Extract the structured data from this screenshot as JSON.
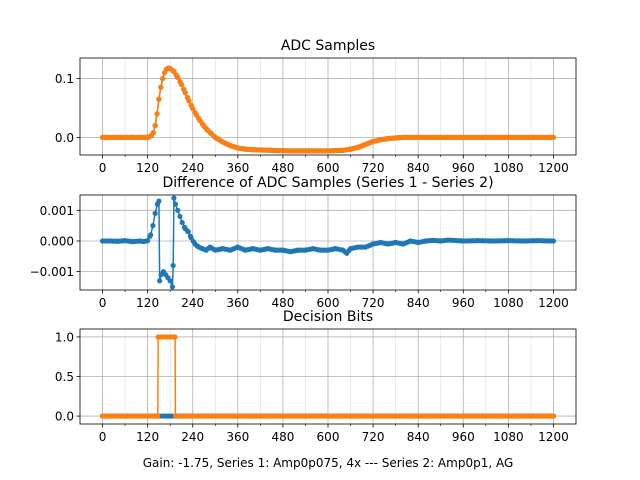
{
  "chart_data": [
    {
      "type": "line",
      "title": "ADC Samples",
      "xlabel": "",
      "ylabel": "",
      "xlim": [
        -60,
        1260
      ],
      "ylim": [
        -0.03,
        0.135
      ],
      "xticks": [
        0,
        120,
        240,
        360,
        480,
        600,
        720,
        840,
        960,
        1080,
        1200
      ],
      "xtick_labels": [
        "0",
        "120",
        "240",
        "360",
        "480",
        "600",
        "720",
        "840",
        "960",
        "1080",
        "1200"
      ],
      "yticks": [
        0.0,
        0.1
      ],
      "ytick_labels": [
        "0.0",
        "0.1"
      ],
      "grid": true,
      "series": [
        {
          "name": "Series 1",
          "color": "#1f77b4",
          "points": [
            [
              0,
              0
            ],
            [
              80,
              0
            ],
            [
              100,
              0
            ],
            [
              120,
              0
            ],
            [
              125,
              0.001
            ],
            [
              130,
              0.003
            ],
            [
              135,
              0.008
            ],
            [
              140,
              0.02
            ],
            [
              145,
              0.04
            ],
            [
              150,
              0.065
            ],
            [
              155,
              0.085
            ],
            [
              160,
              0.1
            ],
            [
              165,
              0.11
            ],
            [
              170,
              0.116
            ],
            [
              175,
              0.118
            ],
            [
              180,
              0.117
            ],
            [
              190,
              0.112
            ],
            [
              200,
              0.102
            ],
            [
              210,
              0.09
            ],
            [
              220,
              0.076
            ],
            [
              230,
              0.062
            ],
            [
              240,
              0.049
            ],
            [
              250,
              0.038
            ],
            [
              260,
              0.028
            ],
            [
              270,
              0.019
            ],
            [
              280,
              0.012
            ],
            [
              290,
              0.006
            ],
            [
              300,
              0.0
            ],
            [
              320,
              -0.008
            ],
            [
              340,
              -0.014
            ],
            [
              360,
              -0.018
            ],
            [
              380,
              -0.02
            ],
            [
              400,
              -0.021
            ],
            [
              450,
              -0.022
            ],
            [
              500,
              -0.023
            ],
            [
              550,
              -0.023
            ],
            [
              600,
              -0.023
            ],
            [
              640,
              -0.022
            ],
            [
              660,
              -0.02
            ],
            [
              680,
              -0.017
            ],
            [
              700,
              -0.012
            ],
            [
              720,
              -0.007
            ],
            [
              740,
              -0.004
            ],
            [
              760,
              -0.002
            ],
            [
              780,
              -0.001
            ],
            [
              800,
              0
            ],
            [
              840,
              0
            ],
            [
              1200,
              0
            ]
          ]
        },
        {
          "name": "Series 2",
          "color": "#ff7f0e",
          "points": [
            [
              0,
              0
            ],
            [
              80,
              0
            ],
            [
              100,
              0
            ],
            [
              120,
              0
            ],
            [
              125,
              0.001
            ],
            [
              130,
              0.003
            ],
            [
              135,
              0.008
            ],
            [
              140,
              0.02
            ],
            [
              145,
              0.04
            ],
            [
              150,
              0.065
            ],
            [
              155,
              0.085
            ],
            [
              160,
              0.1
            ],
            [
              165,
              0.11
            ],
            [
              170,
              0.116
            ],
            [
              175,
              0.118
            ],
            [
              180,
              0.117
            ],
            [
              190,
              0.112
            ],
            [
              200,
              0.102
            ],
            [
              210,
              0.09
            ],
            [
              220,
              0.076
            ],
            [
              230,
              0.062
            ],
            [
              240,
              0.049
            ],
            [
              250,
              0.038
            ],
            [
              260,
              0.028
            ],
            [
              270,
              0.019
            ],
            [
              280,
              0.012
            ],
            [
              290,
              0.006
            ],
            [
              300,
              0.0
            ],
            [
              320,
              -0.008
            ],
            [
              340,
              -0.014
            ],
            [
              360,
              -0.018
            ],
            [
              380,
              -0.02
            ],
            [
              400,
              -0.021
            ],
            [
              450,
              -0.022
            ],
            [
              500,
              -0.023
            ],
            [
              550,
              -0.023
            ],
            [
              600,
              -0.023
            ],
            [
              640,
              -0.022
            ],
            [
              660,
              -0.02
            ],
            [
              680,
              -0.017
            ],
            [
              700,
              -0.012
            ],
            [
              720,
              -0.007
            ],
            [
              740,
              -0.004
            ],
            [
              760,
              -0.002
            ],
            [
              780,
              -0.001
            ],
            [
              800,
              0
            ],
            [
              840,
              0
            ],
            [
              1200,
              0
            ]
          ]
        }
      ]
    },
    {
      "type": "line",
      "title": "Difference of ADC Samples (Series 1 - Series 2)",
      "xlabel": "",
      "ylabel": "",
      "xlim": [
        -60,
        1260
      ],
      "ylim": [
        -0.0016,
        0.0015
      ],
      "xticks": [
        0,
        120,
        240,
        360,
        480,
        600,
        720,
        840,
        960,
        1080,
        1200
      ],
      "xtick_labels": [
        "0",
        "120",
        "240",
        "360",
        "480",
        "600",
        "720",
        "840",
        "960",
        "1080",
        "1200"
      ],
      "yticks": [
        -0.001,
        0.0,
        0.001
      ],
      "ytick_labels": [
        "−0.001",
        "0.000",
        "0.001"
      ],
      "grid": true,
      "series": [
        {
          "name": "Series 1 - Series 2",
          "color": "#1f77b4",
          "points": [
            [
              0,
              0
            ],
            [
              20,
              0
            ],
            [
              40,
              -1e-05
            ],
            [
              60,
              1e-05
            ],
            [
              80,
              -2e-05
            ],
            [
              100,
              0
            ],
            [
              110,
              -2e-05
            ],
            [
              120,
              1e-05
            ],
            [
              128,
              0.0002
            ],
            [
              134,
              0.0005
            ],
            [
              140,
              0.0009
            ],
            [
              146,
              0.0012
            ],
            [
              150,
              0.0013
            ],
            [
              152,
              -0.0013
            ],
            [
              156,
              -0.0011
            ],
            [
              162,
              -0.001
            ],
            [
              168,
              -0.0011
            ],
            [
              174,
              -0.0012
            ],
            [
              180,
              -0.0013
            ],
            [
              186,
              -0.0015
            ],
            [
              188,
              -0.0008
            ],
            [
              190,
              0.0014
            ],
            [
              194,
              0.0012
            ],
            [
              200,
              0.001
            ],
            [
              206,
              0.0008
            ],
            [
              212,
              0.0006
            ],
            [
              220,
              0.0004
            ],
            [
              228,
              0.0003
            ],
            [
              236,
              0.0001
            ],
            [
              246,
              -0.0001
            ],
            [
              256,
              -0.0002
            ],
            [
              266,
              -0.00025
            ],
            [
              276,
              -0.0003
            ],
            [
              286,
              -0.0002
            ],
            [
              300,
              -0.0003
            ],
            [
              320,
              -0.00025
            ],
            [
              340,
              -0.0003
            ],
            [
              360,
              -0.0002
            ],
            [
              380,
              -0.0003
            ],
            [
              400,
              -0.00025
            ],
            [
              420,
              -0.0003
            ],
            [
              440,
              -0.00025
            ],
            [
              460,
              -0.0003
            ],
            [
              480,
              -0.0003
            ],
            [
              500,
              -0.00035
            ],
            [
              520,
              -0.0003
            ],
            [
              540,
              -0.0003
            ],
            [
              560,
              -0.00025
            ],
            [
              580,
              -0.0003
            ],
            [
              600,
              -0.0003
            ],
            [
              620,
              -0.00025
            ],
            [
              640,
              -0.0003
            ],
            [
              650,
              -0.0004
            ],
            [
              660,
              -0.00025
            ],
            [
              680,
              -0.0002
            ],
            [
              700,
              -0.0002
            ],
            [
              720,
              -0.0001
            ],
            [
              740,
              -5e-05
            ],
            [
              760,
              -0.0001
            ],
            [
              780,
              -5e-05
            ],
            [
              800,
              -0.0001
            ],
            [
              820,
              0
            ],
            [
              840,
              -5e-05
            ],
            [
              860,
              0
            ],
            [
              880,
              2e-05
            ],
            [
              900,
              0
            ],
            [
              920,
              3e-05
            ],
            [
              960,
              0
            ],
            [
              1000,
              1e-05
            ],
            [
              1040,
              0
            ],
            [
              1080,
              1e-05
            ],
            [
              1120,
              0
            ],
            [
              1160,
              1e-05
            ],
            [
              1200,
              0
            ]
          ]
        }
      ]
    },
    {
      "type": "line",
      "title": "Decision Bits",
      "xlabel": "Gain: -1.75, Series 1: Amp0p075, 4x --- Series 2: Amp0p1, AG",
      "ylabel": "",
      "xlim": [
        -60,
        1260
      ],
      "ylim": [
        -0.1,
        1.1
      ],
      "xticks": [
        0,
        120,
        240,
        360,
        480,
        600,
        720,
        840,
        960,
        1080,
        1200
      ],
      "xtick_labels": [
        "0",
        "120",
        "240",
        "360",
        "480",
        "600",
        "720",
        "840",
        "960",
        "1080",
        "1200"
      ],
      "yticks": [
        0.0,
        0.5,
        1.0
      ],
      "ytick_labels": [
        "0.0",
        "0.5",
        "1.0"
      ],
      "grid": true,
      "series": [
        {
          "name": "Series 1",
          "color": "#1f77b4",
          "points": [
            [
              0,
              0
            ],
            [
              150,
              0
            ],
            [
              185,
              0
            ],
            [
              1200,
              0
            ]
          ]
        },
        {
          "name": "Series 2",
          "color": "#ff7f0e",
          "points": [
            [
              0,
              0
            ],
            [
              147,
              0
            ],
            [
              148,
              1
            ],
            [
              193,
              1
            ],
            [
              194,
              0
            ],
            [
              1200,
              0
            ]
          ]
        }
      ]
    }
  ]
}
